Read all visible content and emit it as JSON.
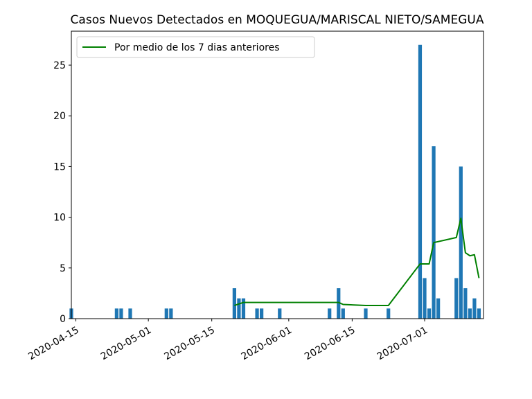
{
  "chart_data": {
    "type": "bar",
    "title": "Casos Nuevos Detectados en MOQUEGUA/MARISCAL NIETO/SAMEGUA",
    "xlabel": "",
    "ylabel": "",
    "xlim": [
      "2020-04-14",
      "2020-07-14"
    ],
    "ylim": [
      0,
      28.35
    ],
    "y_ticks": [
      0,
      5,
      10,
      15,
      20,
      25
    ],
    "x_ticks": [
      "2020-04-15",
      "2020-05-01",
      "2020-05-15",
      "2020-06-01",
      "2020-06-15",
      "2020-07-01"
    ],
    "grid": false,
    "legend_position": "top-left",
    "colors": {
      "bars": "#1f77b4",
      "line": "#008000"
    },
    "series": [
      {
        "type": "bar",
        "points": [
          [
            "2020-04-14",
            1
          ],
          [
            "2020-04-24",
            1
          ],
          [
            "2020-04-25",
            1
          ],
          [
            "2020-04-27",
            1
          ],
          [
            "2020-05-05",
            1
          ],
          [
            "2020-05-06",
            1
          ],
          [
            "2020-05-20",
            3
          ],
          [
            "2020-05-21",
            2
          ],
          [
            "2020-05-22",
            2
          ],
          [
            "2020-05-25",
            1
          ],
          [
            "2020-05-26",
            1
          ],
          [
            "2020-05-30",
            1
          ],
          [
            "2020-06-10",
            1
          ],
          [
            "2020-06-12",
            3
          ],
          [
            "2020-06-13",
            1
          ],
          [
            "2020-06-18",
            1
          ],
          [
            "2020-06-23",
            1
          ],
          [
            "2020-06-30",
            27
          ],
          [
            "2020-07-01",
            4
          ],
          [
            "2020-07-02",
            1
          ],
          [
            "2020-07-03",
            17
          ],
          [
            "2020-07-04",
            2
          ],
          [
            "2020-07-08",
            4
          ],
          [
            "2020-07-09",
            15
          ],
          [
            "2020-07-10",
            3
          ],
          [
            "2020-07-11",
            1
          ],
          [
            "2020-07-12",
            2
          ],
          [
            "2020-07-13",
            1
          ]
        ]
      },
      {
        "type": "line",
        "name": "Por medio de los 7 dias anteriores",
        "points": [
          [
            "2020-05-20",
            1.3
          ],
          [
            "2020-05-22",
            1.6
          ],
          [
            "2020-06-12",
            1.6
          ],
          [
            "2020-06-13",
            1.4
          ],
          [
            "2020-06-18",
            1.3
          ],
          [
            "2020-06-23",
            1.3
          ],
          [
            "2020-06-30",
            5.4
          ],
          [
            "2020-07-01",
            5.4
          ],
          [
            "2020-07-02",
            5.4
          ],
          [
            "2020-07-03",
            7.5
          ],
          [
            "2020-07-04",
            7.6
          ],
          [
            "2020-07-08",
            8.0
          ],
          [
            "2020-07-09",
            9.9
          ],
          [
            "2020-07-10",
            6.5
          ],
          [
            "2020-07-11",
            6.2
          ],
          [
            "2020-07-12",
            6.3
          ],
          [
            "2020-07-13",
            4.0
          ]
        ]
      }
    ]
  }
}
